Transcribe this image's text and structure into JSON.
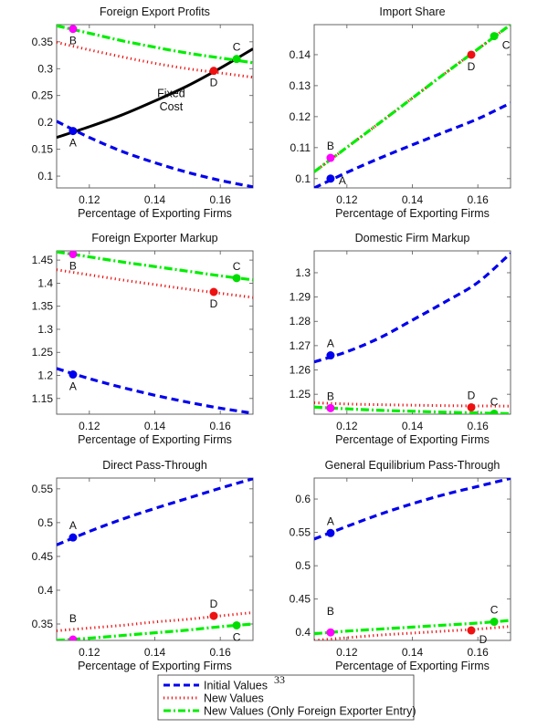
{
  "page_number": "33",
  "legend": {
    "entries": [
      {
        "series": "initial",
        "label": "Initial Values"
      },
      {
        "series": "new",
        "label": "New Values"
      },
      {
        "series": "new_foreign",
        "label": "New Values (Only Foreign Exporter Entry)"
      }
    ]
  },
  "series_styles": {
    "initial": {
      "color": "#0000ee",
      "dash": "dashed"
    },
    "new": {
      "color": "#ee1111",
      "dash": "dotted"
    },
    "new_foreign": {
      "color": "#00ee00",
      "dash": "dash-dot"
    },
    "fixed_cost": {
      "color": "#000000",
      "dash": "solid"
    }
  },
  "point_colors": {
    "A": "#0000ee",
    "B": "#ff00ff",
    "C": "#00dd00",
    "D": "#ee1111"
  },
  "chart_data": [
    {
      "type": "line",
      "title": "Foreign Export Profits",
      "xlabel": "Percentage of Exporting Firms",
      "ylabel": "",
      "xlim": [
        0.11,
        0.17
      ],
      "ylim": [
        0.078,
        0.382
      ],
      "xticks": [
        0.12,
        0.14,
        0.16
      ],
      "xtick_labels": [
        "0.12",
        "0.14",
        "0.16"
      ],
      "yticks": [
        0.1,
        0.15,
        0.2,
        0.25,
        0.3,
        0.35
      ],
      "ytick_labels": [
        "0.1",
        "0.15",
        "0.2",
        "0.25",
        "0.3",
        "0.35"
      ],
      "x": [
        0.11,
        0.12,
        0.13,
        0.14,
        0.15,
        0.16,
        0.17
      ],
      "series": [
        {
          "key": "initial",
          "name": "Initial Values",
          "values": [
            0.202,
            0.172,
            0.146,
            0.125,
            0.107,
            0.092,
            0.08
          ]
        },
        {
          "key": "new",
          "name": "New Values",
          "values": [
            0.349,
            0.335,
            0.322,
            0.31,
            0.3,
            0.292,
            0.284
          ]
        },
        {
          "key": "new_foreign",
          "name": "New Values (Only Foreign Exporter Entry)",
          "values": [
            0.38,
            0.366,
            0.352,
            0.34,
            0.329,
            0.32,
            0.311
          ]
        },
        {
          "key": "fixed_cost",
          "name": "Fixed Cost",
          "values": [
            0.172,
            0.192,
            0.214,
            0.24,
            0.268,
            0.301,
            0.337
          ]
        }
      ],
      "points": [
        {
          "label": "A",
          "x": 0.115,
          "y": 0.184,
          "label_pos": "below"
        },
        {
          "label": "B",
          "x": 0.115,
          "y": 0.374,
          "label_pos": "below"
        },
        {
          "label": "C",
          "x": 0.165,
          "y": 0.318,
          "label_pos": "above"
        },
        {
          "label": "D",
          "x": 0.158,
          "y": 0.296,
          "label_pos": "below"
        }
      ],
      "annotations": [
        {
          "text": "Fixed",
          "x": 0.145,
          "y": 0.247
        },
        {
          "text": "Cost",
          "x": 0.145,
          "y": 0.222
        }
      ]
    },
    {
      "type": "line",
      "title": "Import Share",
      "xlabel": "Percentage of Exporting Firms",
      "ylabel": "",
      "xlim": [
        0.11,
        0.17
      ],
      "ylim": [
        0.097,
        0.1497
      ],
      "xticks": [
        0.12,
        0.14,
        0.16
      ],
      "xtick_labels": [
        "0.12",
        "0.14",
        "0.16"
      ],
      "yticks": [
        0.1,
        0.11,
        0.12,
        0.13,
        0.14
      ],
      "ytick_labels": [
        "0.1",
        "0.11",
        "0.12",
        "0.13",
        "0.14"
      ],
      "x": [
        0.11,
        0.12,
        0.13,
        0.14,
        0.15,
        0.16,
        0.17
      ],
      "series": [
        {
          "key": "initial",
          "name": "Initial Values",
          "values": [
            0.097,
            0.102,
            0.1066,
            0.1109,
            0.1151,
            0.1193,
            0.1244
          ]
        },
        {
          "key": "new",
          "name": "New Values",
          "values": [
            0.1022,
            0.1101,
            0.118,
            0.126,
            0.134,
            0.1418,
            0.1497
          ]
        },
        {
          "key": "new_foreign",
          "name": "New Values (Only Foreign Exporter Entry)",
          "values": [
            0.1022,
            0.1101,
            0.118,
            0.126,
            0.134,
            0.1418,
            0.1497
          ]
        }
      ],
      "points": [
        {
          "label": "A",
          "x": 0.115,
          "y": 0.1,
          "label_pos": "right"
        },
        {
          "label": "B",
          "x": 0.115,
          "y": 0.1067,
          "label_pos": "above"
        },
        {
          "label": "C",
          "x": 0.165,
          "y": 0.146,
          "label_pos": "below-right"
        },
        {
          "label": "D",
          "x": 0.158,
          "y": 0.14,
          "label_pos": "below"
        }
      ],
      "annotations": []
    },
    {
      "type": "line",
      "title": "Foreign Exporter Markup",
      "xlabel": "Percentage of Exporting Firms",
      "ylabel": "",
      "xlim": [
        0.11,
        0.17
      ],
      "ylim": [
        1.116,
        1.47
      ],
      "xticks": [
        0.12,
        0.14,
        0.16
      ],
      "xtick_labels": [
        "0.12",
        "0.14",
        "0.16"
      ],
      "yticks": [
        1.15,
        1.2,
        1.25,
        1.3,
        1.35,
        1.4,
        1.45
      ],
      "ytick_labels": [
        "1.15",
        "1.2",
        "1.25",
        "1.3",
        "1.35",
        "1.4",
        "1.45"
      ],
      "x": [
        0.11,
        0.12,
        0.13,
        0.14,
        0.15,
        0.16,
        0.17
      ],
      "series": [
        {
          "key": "initial",
          "name": "Initial Values",
          "values": [
            1.215,
            1.193,
            1.174,
            1.157,
            1.142,
            1.129,
            1.118
          ]
        },
        {
          "key": "new",
          "name": "New Values",
          "values": [
            1.429,
            1.418,
            1.407,
            1.397,
            1.387,
            1.378,
            1.369
          ]
        },
        {
          "key": "new_foreign",
          "name": "New Values (Only Foreign Exporter Entry)",
          "values": [
            1.468,
            1.457,
            1.446,
            1.436,
            1.426,
            1.416,
            1.407
          ]
        }
      ],
      "points": [
        {
          "label": "A",
          "x": 0.115,
          "y": 1.202,
          "label_pos": "below"
        },
        {
          "label": "B",
          "x": 0.115,
          "y": 1.463,
          "label_pos": "below"
        },
        {
          "label": "C",
          "x": 0.165,
          "y": 1.411,
          "label_pos": "above"
        },
        {
          "label": "D",
          "x": 0.158,
          "y": 1.381,
          "label_pos": "below"
        }
      ],
      "annotations": []
    },
    {
      "type": "line",
      "title": "Domestic Firm Markup",
      "xlabel": "Percentage of Exporting Firms",
      "ylabel": "",
      "xlim": [
        0.11,
        0.17
      ],
      "ylim": [
        1.2418,
        1.309
      ],
      "xticks": [
        0.12,
        0.14,
        0.16
      ],
      "xtick_labels": [
        "0.12",
        "0.14",
        "0.16"
      ],
      "yticks": [
        1.25,
        1.26,
        1.27,
        1.28,
        1.29,
        1.3
      ],
      "ytick_labels": [
        "1.25",
        "1.26",
        "1.27",
        "1.28",
        "1.29",
        "1.3"
      ],
      "x": [
        0.11,
        0.12,
        0.13,
        0.14,
        0.15,
        0.16,
        0.17
      ],
      "series": [
        {
          "key": "initial",
          "name": "Initial Values",
          "values": [
            1.2633,
            1.2675,
            1.2732,
            1.2805,
            1.288,
            1.296,
            1.308
          ]
        },
        {
          "key": "new",
          "name": "New Values",
          "values": [
            1.2465,
            1.246,
            1.2457,
            1.2455,
            1.2453,
            1.2452,
            1.2451
          ]
        },
        {
          "key": "new_foreign",
          "name": "New Values (Only Foreign Exporter Entry)",
          "values": [
            1.2447,
            1.244,
            1.2434,
            1.243,
            1.2426,
            1.2423,
            1.242
          ]
        }
      ],
      "points": [
        {
          "label": "A",
          "x": 0.115,
          "y": 1.266,
          "label_pos": "above"
        },
        {
          "label": "B",
          "x": 0.115,
          "y": 1.2443,
          "label_pos": "above"
        },
        {
          "label": "C",
          "x": 0.165,
          "y": 1.242,
          "label_pos": "above"
        },
        {
          "label": "D",
          "x": 0.158,
          "y": 1.2446,
          "label_pos": "above"
        }
      ],
      "annotations": []
    },
    {
      "type": "line",
      "title": "Direct Pass-Through",
      "xlabel": "Percentage of Exporting Firms",
      "ylabel": "",
      "xlim": [
        0.11,
        0.17
      ],
      "ylim": [
        0.3257,
        0.566
      ],
      "xticks": [
        0.12,
        0.14,
        0.16
      ],
      "xtick_labels": [
        "0.12",
        "0.14",
        "0.16"
      ],
      "yticks": [
        0.35,
        0.4,
        0.45,
        0.5,
        0.55
      ],
      "ytick_labels": [
        "0.35",
        "0.4",
        "0.45",
        "0.5",
        "0.55"
      ],
      "x": [
        0.11,
        0.12,
        0.13,
        0.14,
        0.15,
        0.16,
        0.17
      ],
      "series": [
        {
          "key": "initial",
          "name": "Initial Values",
          "values": [
            0.467,
            0.487,
            0.505,
            0.521,
            0.536,
            0.551,
            0.565
          ]
        },
        {
          "key": "new",
          "name": "New Values",
          "values": [
            0.34,
            0.344,
            0.348,
            0.353,
            0.357,
            0.362,
            0.367
          ]
        },
        {
          "key": "new_foreign",
          "name": "New Values (Only Foreign Exporter Entry)",
          "values": [
            0.3257,
            0.329,
            0.333,
            0.337,
            0.341,
            0.346,
            0.35
          ]
        }
      ],
      "points": [
        {
          "label": "A",
          "x": 0.115,
          "y": 0.478,
          "label_pos": "above"
        },
        {
          "label": "B",
          "x": 0.115,
          "y": 0.327,
          "label_pos": "above-high"
        },
        {
          "label": "C",
          "x": 0.165,
          "y": 0.348,
          "label_pos": "below"
        },
        {
          "label": "D",
          "x": 0.158,
          "y": 0.362,
          "label_pos": "above"
        }
      ],
      "annotations": []
    },
    {
      "type": "line",
      "title": "General Equilibrium Pass-Through",
      "xlabel": "Percentage of Exporting Firms",
      "ylabel": "",
      "xlim": [
        0.11,
        0.17
      ],
      "ylim": [
        0.388,
        0.6315
      ],
      "xticks": [
        0.12,
        0.14,
        0.16
      ],
      "xtick_labels": [
        "0.12",
        "0.14",
        "0.16"
      ],
      "yticks": [
        0.4,
        0.45,
        0.5,
        0.55,
        0.6
      ],
      "ytick_labels": [
        "0.4",
        "0.45",
        "0.5",
        "0.55",
        "0.6"
      ],
      "x": [
        0.11,
        0.12,
        0.13,
        0.14,
        0.15,
        0.16,
        0.17
      ],
      "series": [
        {
          "key": "initial",
          "name": "Initial Values",
          "values": [
            0.54,
            0.559,
            0.577,
            0.593,
            0.607,
            0.619,
            0.631
          ]
        },
        {
          "key": "new",
          "name": "New Values",
          "values": [
            0.388,
            0.392,
            0.396,
            0.399,
            0.402,
            0.405,
            0.409
          ]
        },
        {
          "key": "new_foreign",
          "name": "New Values (Only Foreign Exporter Entry)",
          "values": [
            0.398,
            0.402,
            0.405,
            0.408,
            0.411,
            0.414,
            0.418
          ]
        }
      ],
      "points": [
        {
          "label": "A",
          "x": 0.115,
          "y": 0.549,
          "label_pos": "above"
        },
        {
          "label": "B",
          "x": 0.115,
          "y": 0.4,
          "label_pos": "above-high"
        },
        {
          "label": "C",
          "x": 0.165,
          "y": 0.416,
          "label_pos": "above"
        },
        {
          "label": "D",
          "x": 0.158,
          "y": 0.403,
          "label_pos": "below-right"
        }
      ],
      "annotations": []
    }
  ]
}
